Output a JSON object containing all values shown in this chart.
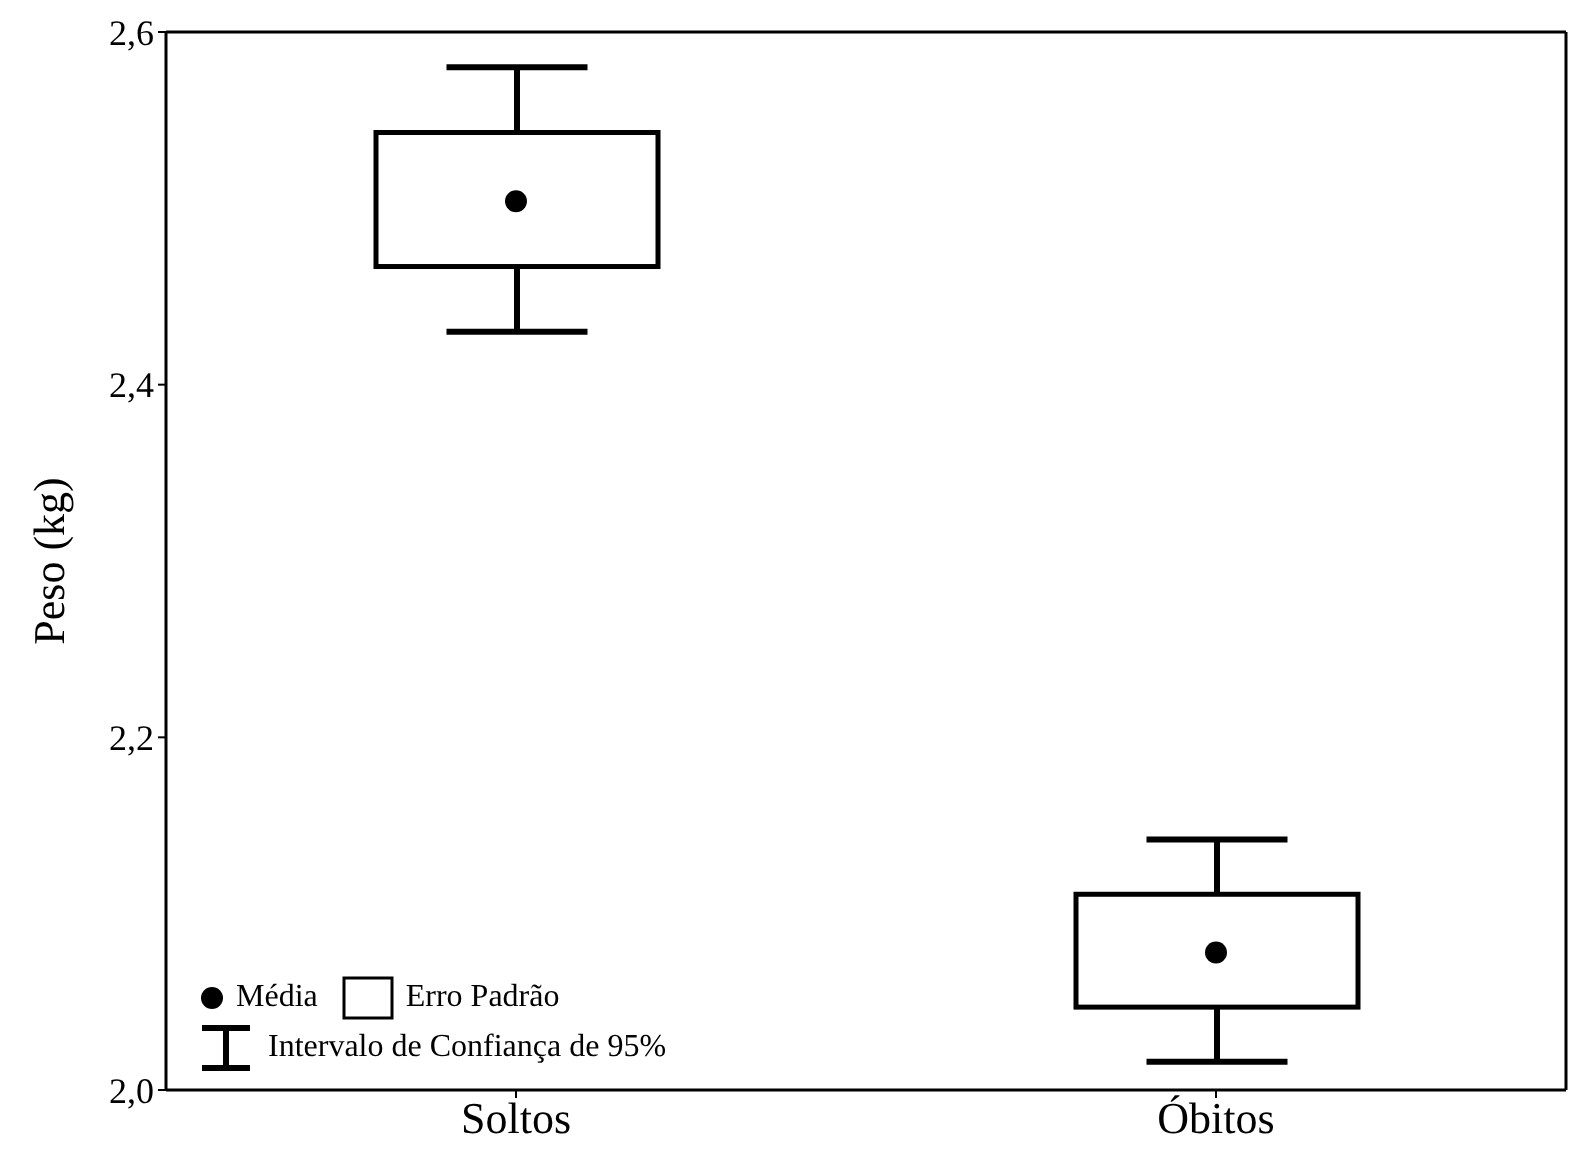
{
  "chart_data": {
    "type": "box",
    "ylabel": "Peso (kg)",
    "categories": [
      "Soltos",
      "Óbitos"
    ],
    "boxes": [
      {
        "low": 2.43,
        "q1": 2.467,
        "q3": 2.543,
        "high": 2.58,
        "mean": 2.504
      },
      {
        "low": 2.016,
        "q1": 2.047,
        "q3": 2.111,
        "high": 2.142,
        "mean": 2.078
      }
    ],
    "ylim": [
      2.0,
      2.6
    ],
    "yticks": [
      {
        "value": 2.0,
        "label": "2,0"
      },
      {
        "value": 2.2,
        "label": "2,2"
      },
      {
        "value": 2.4,
        "label": "2,4"
      },
      {
        "value": 2.6,
        "label": "2,6"
      }
    ],
    "color": "#000000",
    "annotations": [
      "Média",
      "Erro Padrão",
      "Intervalo de Confiança de 95%"
    ]
  }
}
